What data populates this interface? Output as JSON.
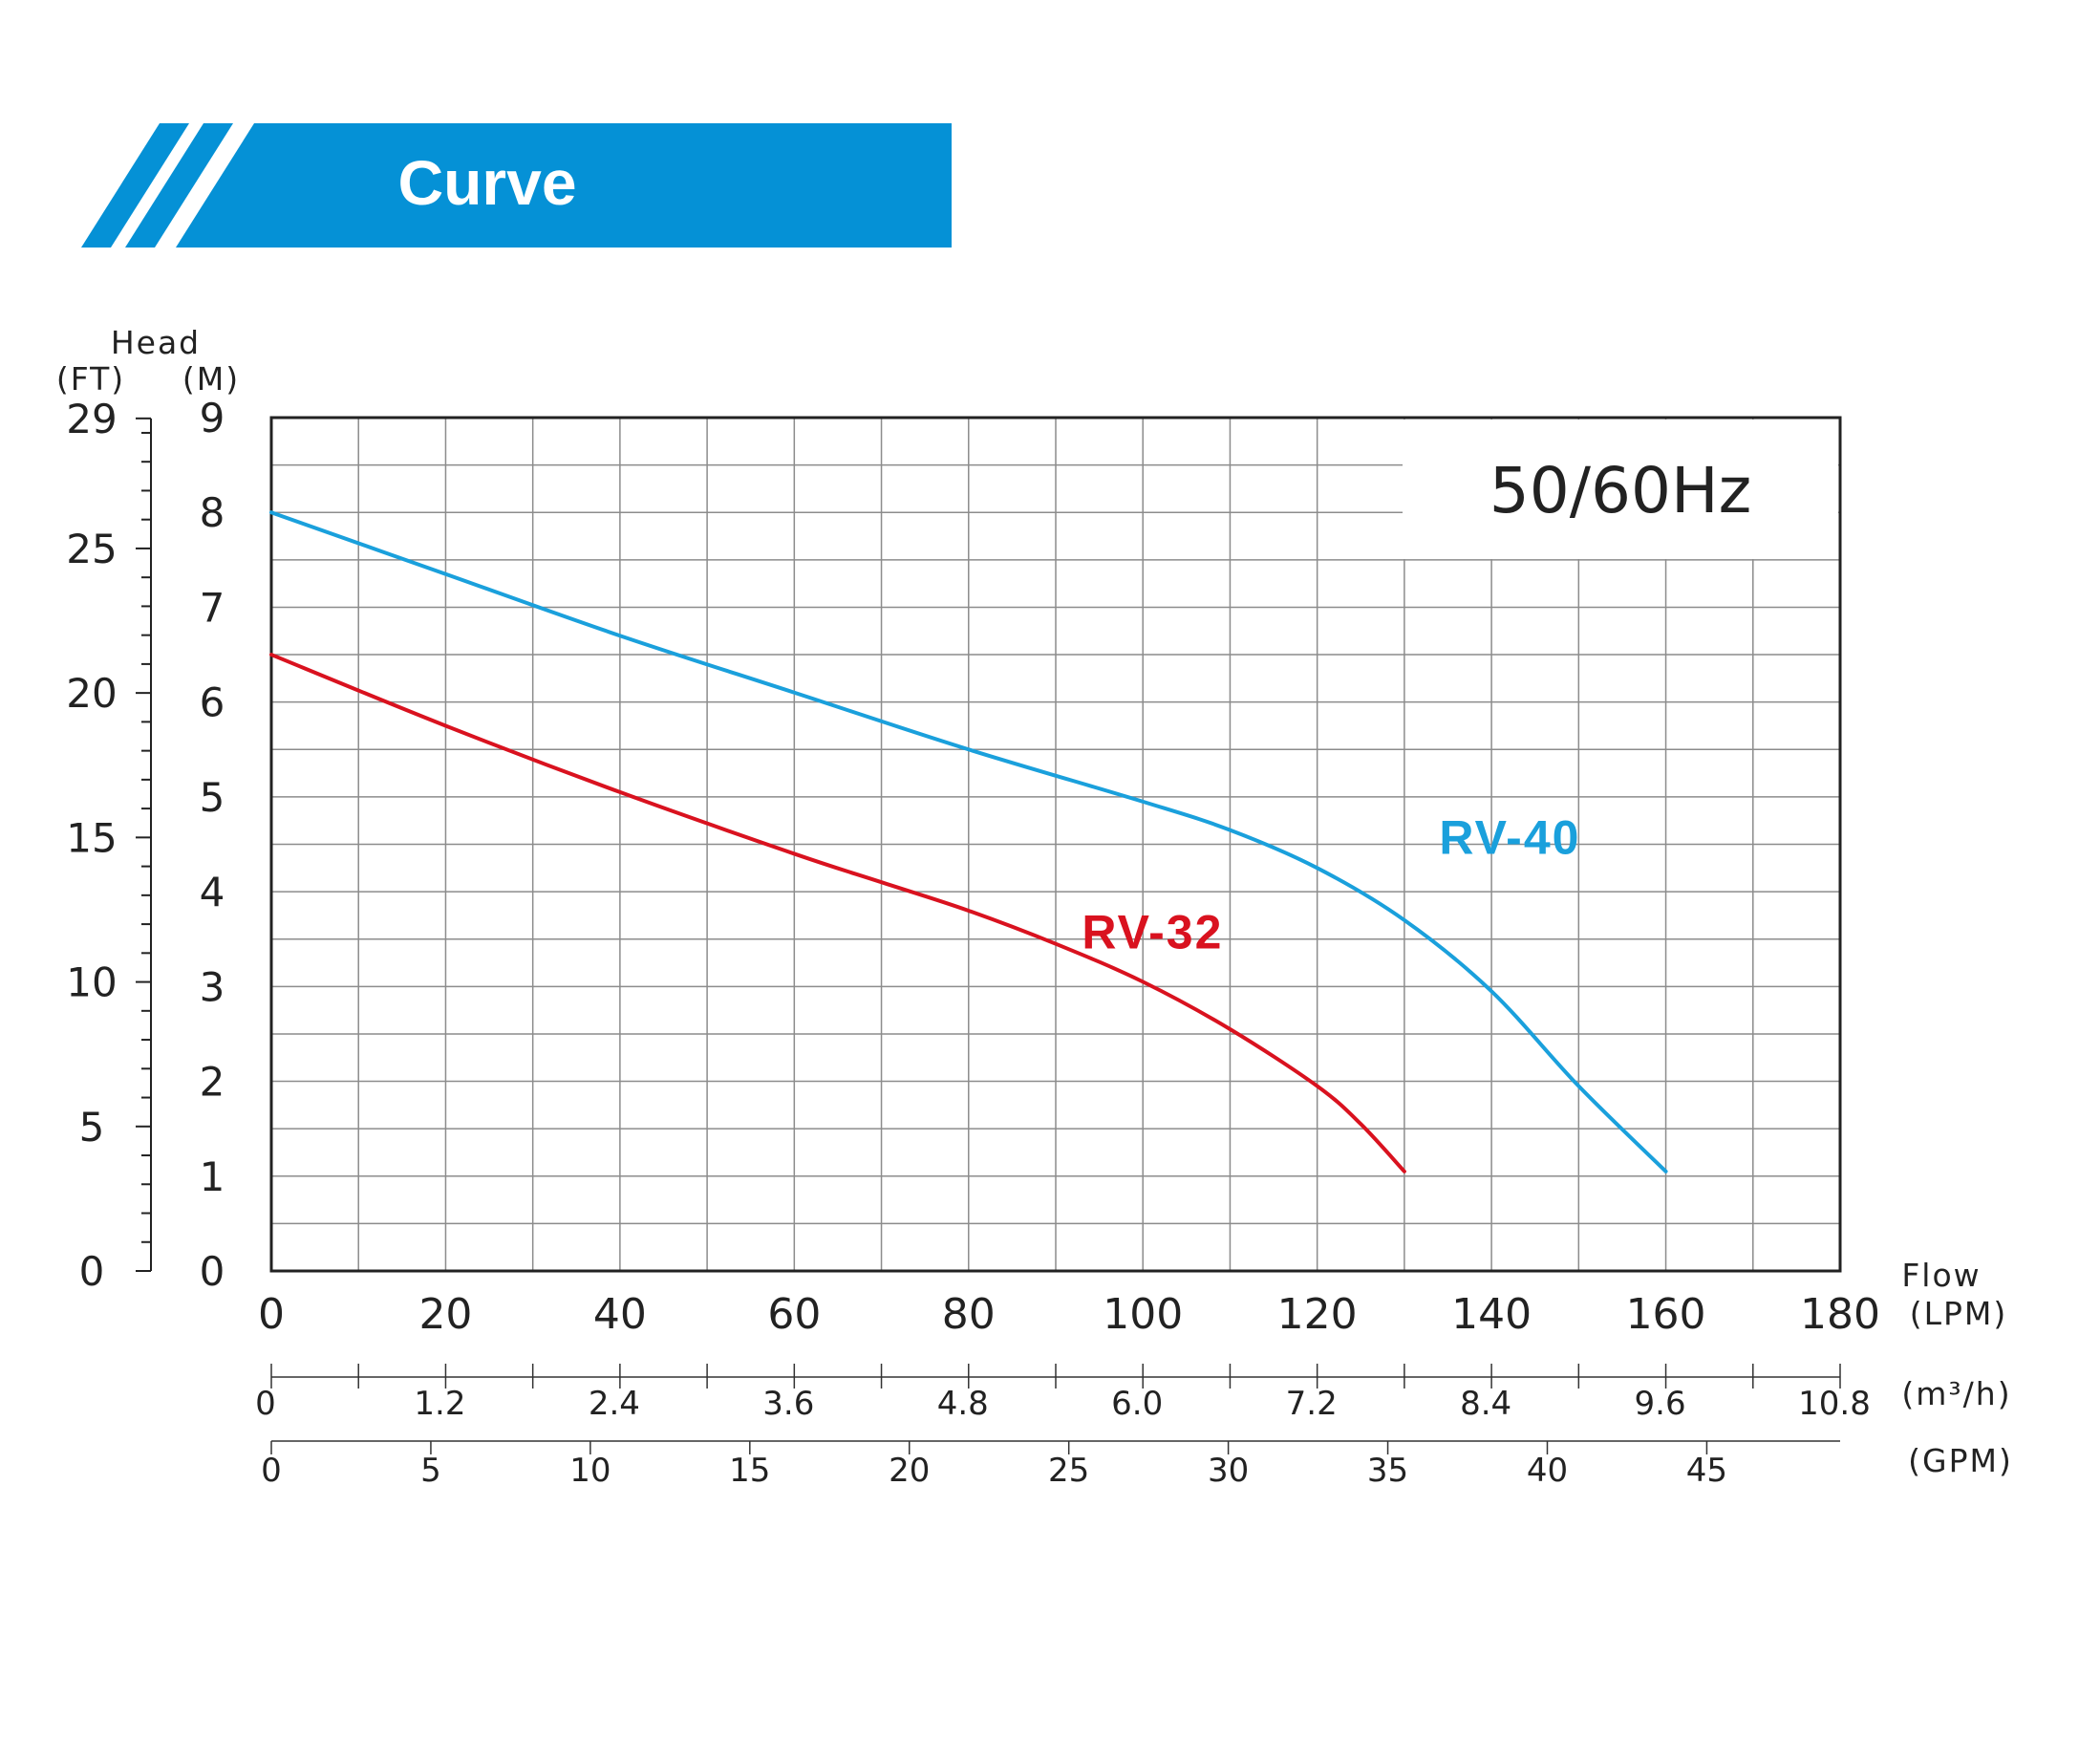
{
  "header": {
    "title": "Curve"
  },
  "colors": {
    "banner": "#0591d6",
    "rv40": "#1aa0dc",
    "rv32": "#d9121f",
    "grid": "#8c8c8c",
    "text": "#222222"
  },
  "chart_data": {
    "type": "line",
    "title": "Curve",
    "frequency": "50/60Hz",
    "xlabel": "Flow",
    "xunit": "(LPM)",
    "xlim": [
      0,
      180
    ],
    "x_ticks": [
      "0",
      "20",
      "40",
      "60",
      "80",
      "100",
      "120",
      "140",
      "160",
      "180"
    ],
    "ylabel": "Head",
    "y_units_ft": "(FT)",
    "y_units_m": "(M)",
    "ylim": [
      0,
      9
    ],
    "y_ticks_m": [
      "0",
      "1",
      "2",
      "3",
      "4",
      "5",
      "6",
      "7",
      "8",
      "9"
    ],
    "y_ticks_ft": [
      {
        "label": "0",
        "ft": 0
      },
      {
        "label": "5",
        "ft": 5
      },
      {
        "label": "10",
        "ft": 10
      },
      {
        "label": "15",
        "ft": 15
      },
      {
        "label": "20",
        "ft": 20
      },
      {
        "label": "25",
        "ft": 25
      },
      {
        "label": "29",
        "ft": 29.5
      }
    ],
    "secondary_axes": [
      {
        "unit": "(m³/h)",
        "ticks": [
          {
            "label": "0",
            "lpm": 0
          },
          {
            "label": "1.2",
            "lpm": 20
          },
          {
            "label": "2.4",
            "lpm": 40
          },
          {
            "label": "3.6",
            "lpm": 60
          },
          {
            "label": "4.8",
            "lpm": 80
          },
          {
            "label": "6.0",
            "lpm": 100
          },
          {
            "label": "7.2",
            "lpm": 120
          },
          {
            "label": "8.4",
            "lpm": 140
          },
          {
            "label": "9.6",
            "lpm": 160
          },
          {
            "label": "10.8",
            "lpm": 180
          }
        ]
      },
      {
        "unit": "(GPM)",
        "ticks": [
          {
            "label": "0",
            "lpm": 0
          },
          {
            "label": "5",
            "lpm": 18.3
          },
          {
            "label": "10",
            "lpm": 36.6
          },
          {
            "label": "15",
            "lpm": 54.9
          },
          {
            "label": "20",
            "lpm": 73.2
          },
          {
            "label": "25",
            "lpm": 91.5
          },
          {
            "label": "30",
            "lpm": 109.8
          },
          {
            "label": "35",
            "lpm": 128.1
          },
          {
            "label": "40",
            "lpm": 146.4
          },
          {
            "label": "45",
            "lpm": 164.7
          }
        ]
      }
    ],
    "series": [
      {
        "name": "RV-40",
        "color": "#1aa0dc",
        "label_at": [
          134,
          4.4
        ],
        "x": [
          0,
          20,
          40,
          60,
          80,
          100,
          110,
          120,
          130,
          140,
          150,
          160
        ],
        "y": [
          8.0,
          7.35,
          6.7,
          6.1,
          5.5,
          4.95,
          4.65,
          4.25,
          3.7,
          2.95,
          1.95,
          1.05
        ]
      },
      {
        "name": "RV-32",
        "color": "#d9121f",
        "label_at": [
          93,
          3.4
        ],
        "x": [
          0,
          20,
          40,
          60,
          70,
          80,
          90,
          100,
          110,
          120,
          125,
          130
        ],
        "y": [
          6.5,
          5.75,
          5.05,
          4.4,
          4.1,
          3.8,
          3.45,
          3.05,
          2.55,
          1.95,
          1.55,
          1.05
        ]
      }
    ]
  }
}
